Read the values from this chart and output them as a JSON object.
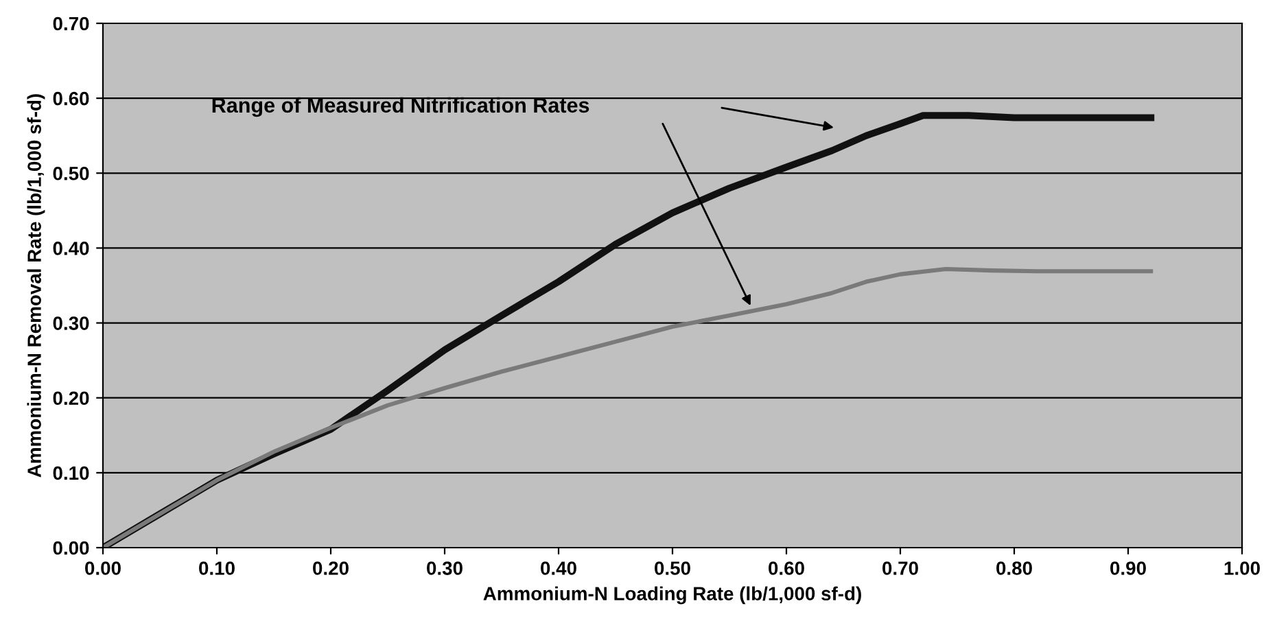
{
  "chart_data": {
    "type": "line",
    "xlabel": "Ammonium-N Loading Rate (lb/1,000 sf-d)",
    "ylabel": "Ammonium-N Removal Rate (lb/1,000 sf-d)",
    "annotations": [
      "Range of Measured Nitrification Rates"
    ],
    "xlim": [
      0,
      1
    ],
    "xticks": [
      {
        "value": 0,
        "label": "0.00"
      },
      {
        "value": 0.1,
        "label": "0.10"
      },
      {
        "value": 0.2,
        "label": "0.20"
      },
      {
        "value": 0.3,
        "label": "0.30"
      },
      {
        "value": 0.4,
        "label": "0.40"
      },
      {
        "value": 0.5,
        "label": "0.50"
      },
      {
        "value": 0.6,
        "label": "0.60"
      },
      {
        "value": 0.7,
        "label": "0.70"
      },
      {
        "value": 0.8,
        "label": "0.80"
      },
      {
        "value": 0.9,
        "label": "0.90"
      },
      {
        "value": 1,
        "label": "1.00"
      }
    ],
    "ylim": [
      0,
      0.7
    ],
    "yticks": [
      {
        "value": 0,
        "label": "0.00"
      },
      {
        "value": 0.1,
        "label": "0.10"
      },
      {
        "value": 0.2,
        "label": "0.20"
      },
      {
        "value": 0.3,
        "label": "0.30"
      },
      {
        "value": 0.4,
        "label": "0.40"
      },
      {
        "value": 0.5,
        "label": "0.50"
      },
      {
        "value": 0.6,
        "label": "0.60"
      },
      {
        "value": 0.7,
        "label": "0.70"
      }
    ],
    "grid": "y",
    "legend": false,
    "marker": "none",
    "line_style": "solid",
    "series": [
      {
        "color": "#111111",
        "x": [
          0,
          0.05,
          0.1,
          0.15,
          0.2,
          0.25,
          0.3,
          0.35,
          0.4,
          0.45,
          0.5,
          0.55,
          0.6,
          0.64,
          0.67,
          0.7,
          0.72,
          0.76,
          0.8,
          0.92
        ],
        "values": [
          0,
          0.045,
          0.09,
          0.125,
          0.158,
          0.21,
          0.264,
          0.31,
          0.355,
          0.405,
          0.447,
          0.48,
          0.508,
          0.53,
          0.55,
          0.566,
          0.577,
          0.577,
          0.574,
          0.574
        ]
      },
      {
        "color": "#7a7a7a",
        "x": [
          0,
          0.05,
          0.1,
          0.15,
          0.2,
          0.25,
          0.3,
          0.35,
          0.4,
          0.45,
          0.5,
          0.55,
          0.6,
          0.64,
          0.67,
          0.7,
          0.74,
          0.78,
          0.82,
          0.92
        ],
        "values": [
          0,
          0.045,
          0.09,
          0.128,
          0.16,
          0.19,
          0.213,
          0.235,
          0.255,
          0.275,
          0.295,
          0.31,
          0.325,
          0.34,
          0.355,
          0.365,
          0.372,
          0.37,
          0.369,
          0.369
        ]
      }
    ]
  }
}
